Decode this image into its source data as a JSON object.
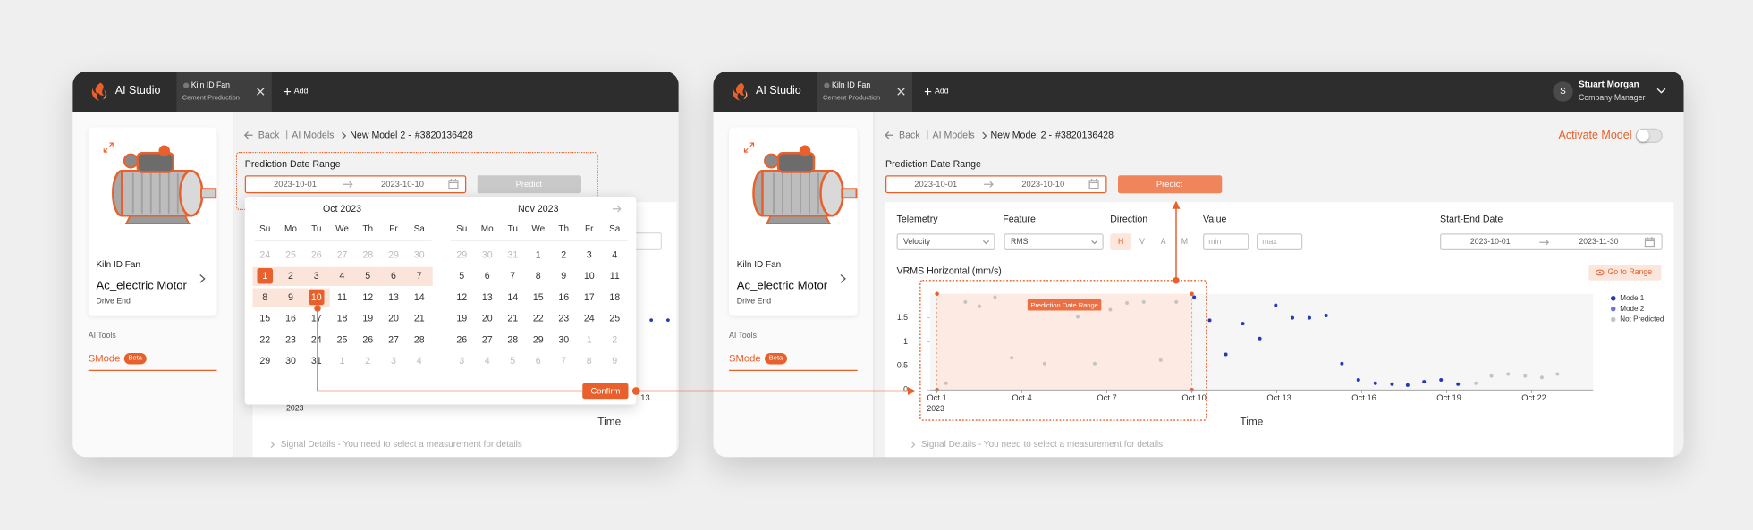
{
  "app": {
    "brand": "AI Studio",
    "tab_title": "Kiln ID Fan",
    "tab_subtitle": "Cement Production",
    "add": "Add"
  },
  "user": {
    "initial": "S",
    "name": "Stuart Morgan",
    "role": "Company Manager"
  },
  "sidebar": {
    "asset": "Kiln ID Fan",
    "model": "Ac_electric Motor",
    "location": "Drive End",
    "tools_heading": "AI Tools",
    "tool": "SMode",
    "badge": "Beta"
  },
  "breadcrumb": {
    "back": "Back",
    "parent": "AI Models",
    "model": "New Model 2 -",
    "id": "#3820136428"
  },
  "prediction": {
    "label": "Prediction Date Range",
    "start": "2023-10-01",
    "end": "2023-10-10",
    "button": "Predict"
  },
  "calendar": {
    "weekdays": [
      "Su",
      "Mo",
      "Tu",
      "We",
      "Th",
      "Fr",
      "Sa"
    ],
    "months": [
      {
        "title": "Oct 2023",
        "days": [
          [
            24,
            25,
            26,
            27,
            28,
            29,
            30
          ],
          [
            1,
            2,
            3,
            4,
            5,
            6,
            7
          ],
          [
            8,
            9,
            10,
            11,
            12,
            13,
            14
          ],
          [
            15,
            16,
            17,
            18,
            19,
            20,
            21
          ],
          [
            22,
            23,
            24,
            25,
            26,
            27,
            28
          ],
          [
            29,
            30,
            31,
            1,
            2,
            3,
            4
          ]
        ]
      },
      {
        "title": "Nov 2023",
        "days": [
          [
            29,
            30,
            31,
            1,
            2,
            3,
            4
          ],
          [
            5,
            6,
            7,
            8,
            9,
            10,
            11
          ],
          [
            12,
            13,
            14,
            15,
            16,
            17,
            18
          ],
          [
            19,
            20,
            21,
            22,
            23,
            24,
            25
          ],
          [
            26,
            27,
            28,
            29,
            30,
            1,
            2
          ],
          [
            3,
            4,
            5,
            6,
            7,
            8,
            9
          ]
        ]
      }
    ],
    "confirm": "Confirm"
  },
  "left_background": {
    "tick": "13",
    "year": "2023",
    "axis": "Time"
  },
  "activate": "Activate Model",
  "filters": {
    "telemetry": {
      "label": "Telemetry",
      "value": "Velocity"
    },
    "feature": {
      "label": "Feature",
      "value": "RMS"
    },
    "direction": {
      "label": "Direction",
      "options": [
        "H",
        "V",
        "A",
        "M"
      ]
    },
    "value": {
      "label": "Value",
      "min": "min",
      "max": "max"
    },
    "dates": {
      "label": "Start-End Date",
      "start": "2023-10-01",
      "end": "2023-11-30"
    }
  },
  "go_to_range": "Go to Range",
  "signal_details": "Signal Details - You need to select a measurement for details",
  "chart_data": {
    "type": "scatter",
    "title": "VRMS Horizontal (mm/s)",
    "x_label": "Time",
    "x_sublabel": "2023",
    "annotation": "Prediction Date Range",
    "xlim": [
      0.76,
      24.17
    ],
    "xticks": [
      {
        "value": 1,
        "label": "Oct 1"
      },
      {
        "value": 4,
        "label": "Oct 4"
      },
      {
        "value": 7,
        "label": "Oct 7"
      },
      {
        "value": 10,
        "label": "Oct 10"
      },
      {
        "value": 13,
        "label": "Oct 13"
      },
      {
        "value": 16,
        "label": "Oct 16"
      },
      {
        "value": 19,
        "label": "Oct 19"
      },
      {
        "value": 22,
        "label": "Oct 22"
      }
    ],
    "ylim": [
      0,
      2
    ],
    "yticks": [
      0,
      0.5,
      1,
      1.5
    ],
    "legend": "right",
    "series": [
      {
        "name": "Mode 1",
        "color": "#2438b8",
        "x": [
          10.08,
          10.63,
          11.2,
          11.8,
          12.4,
          12.96,
          13.55,
          14.15,
          14.74,
          15.3,
          15.88,
          16.48,
          17.07,
          17.62,
          18.2,
          18.8,
          19.4
        ],
        "values": [
          1.93,
          1.45,
          0.74,
          1.38,
          1.07,
          1.76,
          1.5,
          1.5,
          1.55,
          0.55,
          0.21,
          0.14,
          0.12,
          0.1,
          0.17,
          0.21,
          0.12
        ]
      },
      {
        "name": "Mode 2",
        "color": "#6d72d8",
        "x": [],
        "values": []
      },
      {
        "name": "Not Predicted",
        "color": "#c4c4c4",
        "x": [
          1.32,
          2.0,
          2.5,
          3.05,
          3.64,
          4.8,
          5.97,
          6.57,
          7.12,
          7.71,
          8.3,
          8.9,
          9.45,
          20.03,
          20.58,
          21.17,
          21.77,
          22.36,
          22.91
        ],
        "values": [
          0.14,
          1.83,
          1.74,
          1.93,
          0.67,
          0.55,
          1.52,
          0.55,
          1.67,
          1.81,
          1.83,
          0.62,
          1.83,
          0.14,
          0.29,
          0.33,
          0.29,
          0.26,
          0.33
        ]
      }
    ]
  }
}
